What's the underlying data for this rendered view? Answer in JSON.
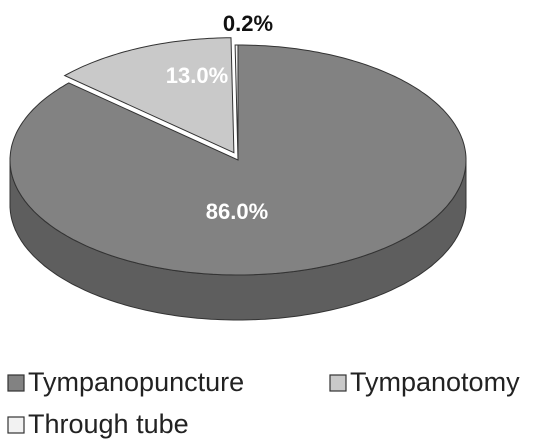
{
  "chart_data": {
    "type": "pie",
    "categories": [
      "Tympanopuncture",
      "Tympanotomy",
      "Through tube"
    ],
    "values": [
      86.0,
      13.0,
      0.2
    ],
    "value_labels": [
      "86.0%",
      "13.0%",
      "0.2%"
    ],
    "colors": [
      "#828282",
      "#c9c9c9",
      "#f2f2f2"
    ]
  }
}
